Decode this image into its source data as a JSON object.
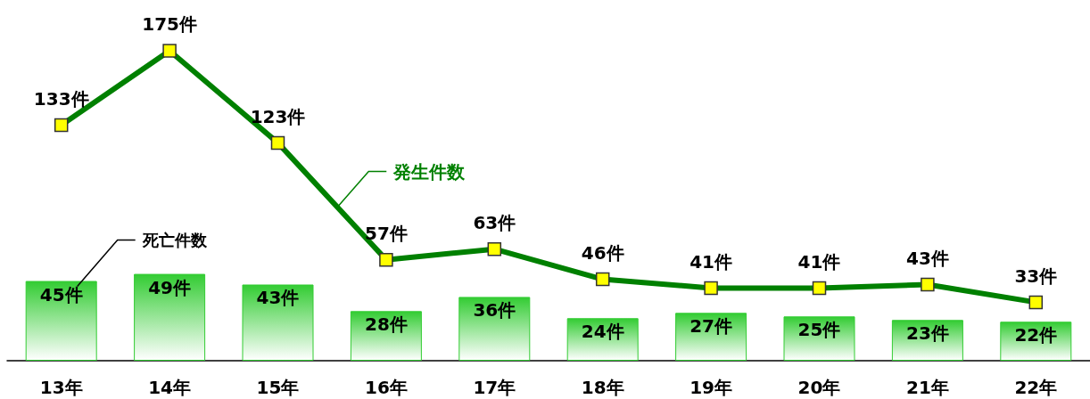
{
  "chart_data": {
    "type": "bar",
    "categories": [
      "13年",
      "14年",
      "15年",
      "16年",
      "17年",
      "18年",
      "19年",
      "20年",
      "21年",
      "22年"
    ],
    "series": [
      {
        "name": "死亡件数",
        "color": "#33cc33",
        "values": [
          45,
          49,
          43,
          28,
          36,
          24,
          27,
          25,
          23,
          22
        ],
        "value_labels": [
          "45件",
          "49件",
          "43件",
          "28件",
          "36件",
          "24件",
          "27件",
          "25件",
          "23件",
          "22件"
        ]
      },
      {
        "name": "発生件数",
        "type": "line",
        "color": "#008000",
        "values": [
          133,
          175,
          123,
          57,
          63,
          46,
          41,
          41,
          43,
          33
        ],
        "value_labels": [
          "133件",
          "175件",
          "123件",
          "57件",
          "63件",
          "46件",
          "41件",
          "41件",
          "43件",
          "33件"
        ]
      }
    ],
    "marker": "square",
    "line_style": "solid",
    "legend": false,
    "tick_labels": "x"
  }
}
